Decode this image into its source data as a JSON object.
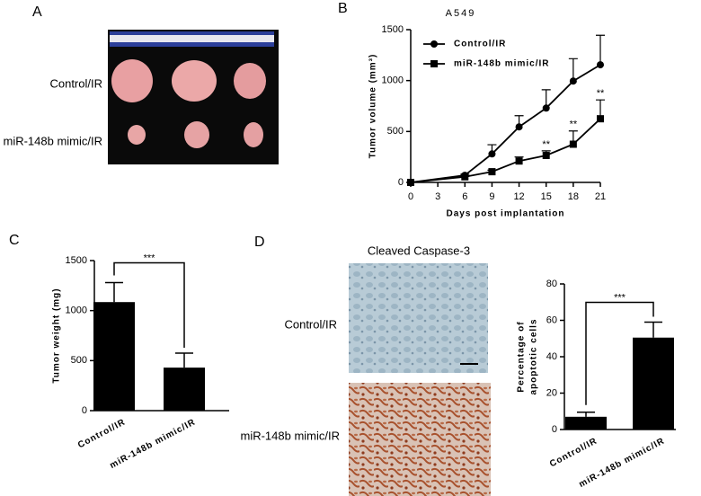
{
  "panel_labels": [
    "A",
    "B",
    "C",
    "D"
  ],
  "photo_a": {
    "rows": [
      "Control/IR",
      "miR-148b mimic/IR"
    ]
  },
  "photo_d": {
    "title": "Cleaved Caspase-3",
    "rows": [
      "Control/IR",
      "miR-148b mimic/IR"
    ]
  },
  "chart_data": [
    {
      "type": "line",
      "title": "A549",
      "xlabel": "Days post implantation",
      "ylabel": "Tumor volume (mm³)",
      "x": [
        0,
        6,
        9,
        12,
        15,
        18,
        21
      ],
      "series": [
        {
          "name": "Control/IR",
          "color": "#000000",
          "marker": "circle",
          "values": [
            0,
            70,
            280,
            545,
            730,
            995,
            1155
          ],
          "errors": [
            0,
            10,
            90,
            110,
            180,
            220,
            290
          ]
        },
        {
          "name": "miR-148b mimic/IR",
          "color": "#000000",
          "marker": "square",
          "values": [
            0,
            55,
            105,
            210,
            265,
            375,
            625
          ],
          "errors": [
            0,
            5,
            15,
            40,
            45,
            130,
            185
          ]
        }
      ],
      "annotations": [
        {
          "text": "**",
          "x": 15
        },
        {
          "text": "**",
          "x": 18
        },
        {
          "text": "**",
          "x": 21
        }
      ],
      "xlim": [
        0,
        21
      ],
      "xticks": [
        0,
        3,
        6,
        9,
        12,
        15,
        18,
        21
      ],
      "ylim": [
        0,
        1500
      ],
      "yticks": [
        0,
        500,
        1000,
        1500
      ],
      "legend": "upper-left"
    },
    {
      "type": "bar",
      "ylabel": "Tumor weight (mg)",
      "categories": [
        "Control/IR",
        "miR-148b mimic/IR"
      ],
      "values": [
        1085,
        430
      ],
      "errors": [
        195,
        145
      ],
      "color": "#000000",
      "significance": "***",
      "ylim": [
        0,
        1500
      ],
      "yticks": [
        0,
        500,
        1000,
        1500
      ]
    },
    {
      "type": "bar",
      "ylabel": [
        "Percentage of",
        "apoptotic cells"
      ],
      "categories": [
        "Control/IR",
        "miR-148b mimic/IR"
      ],
      "values": [
        7,
        50.5
      ],
      "errors": [
        2.5,
        8.5
      ],
      "color": "#000000",
      "significance": "***",
      "ylim": [
        0,
        80
      ],
      "yticks": [
        0,
        20,
        40,
        60,
        80
      ]
    }
  ]
}
